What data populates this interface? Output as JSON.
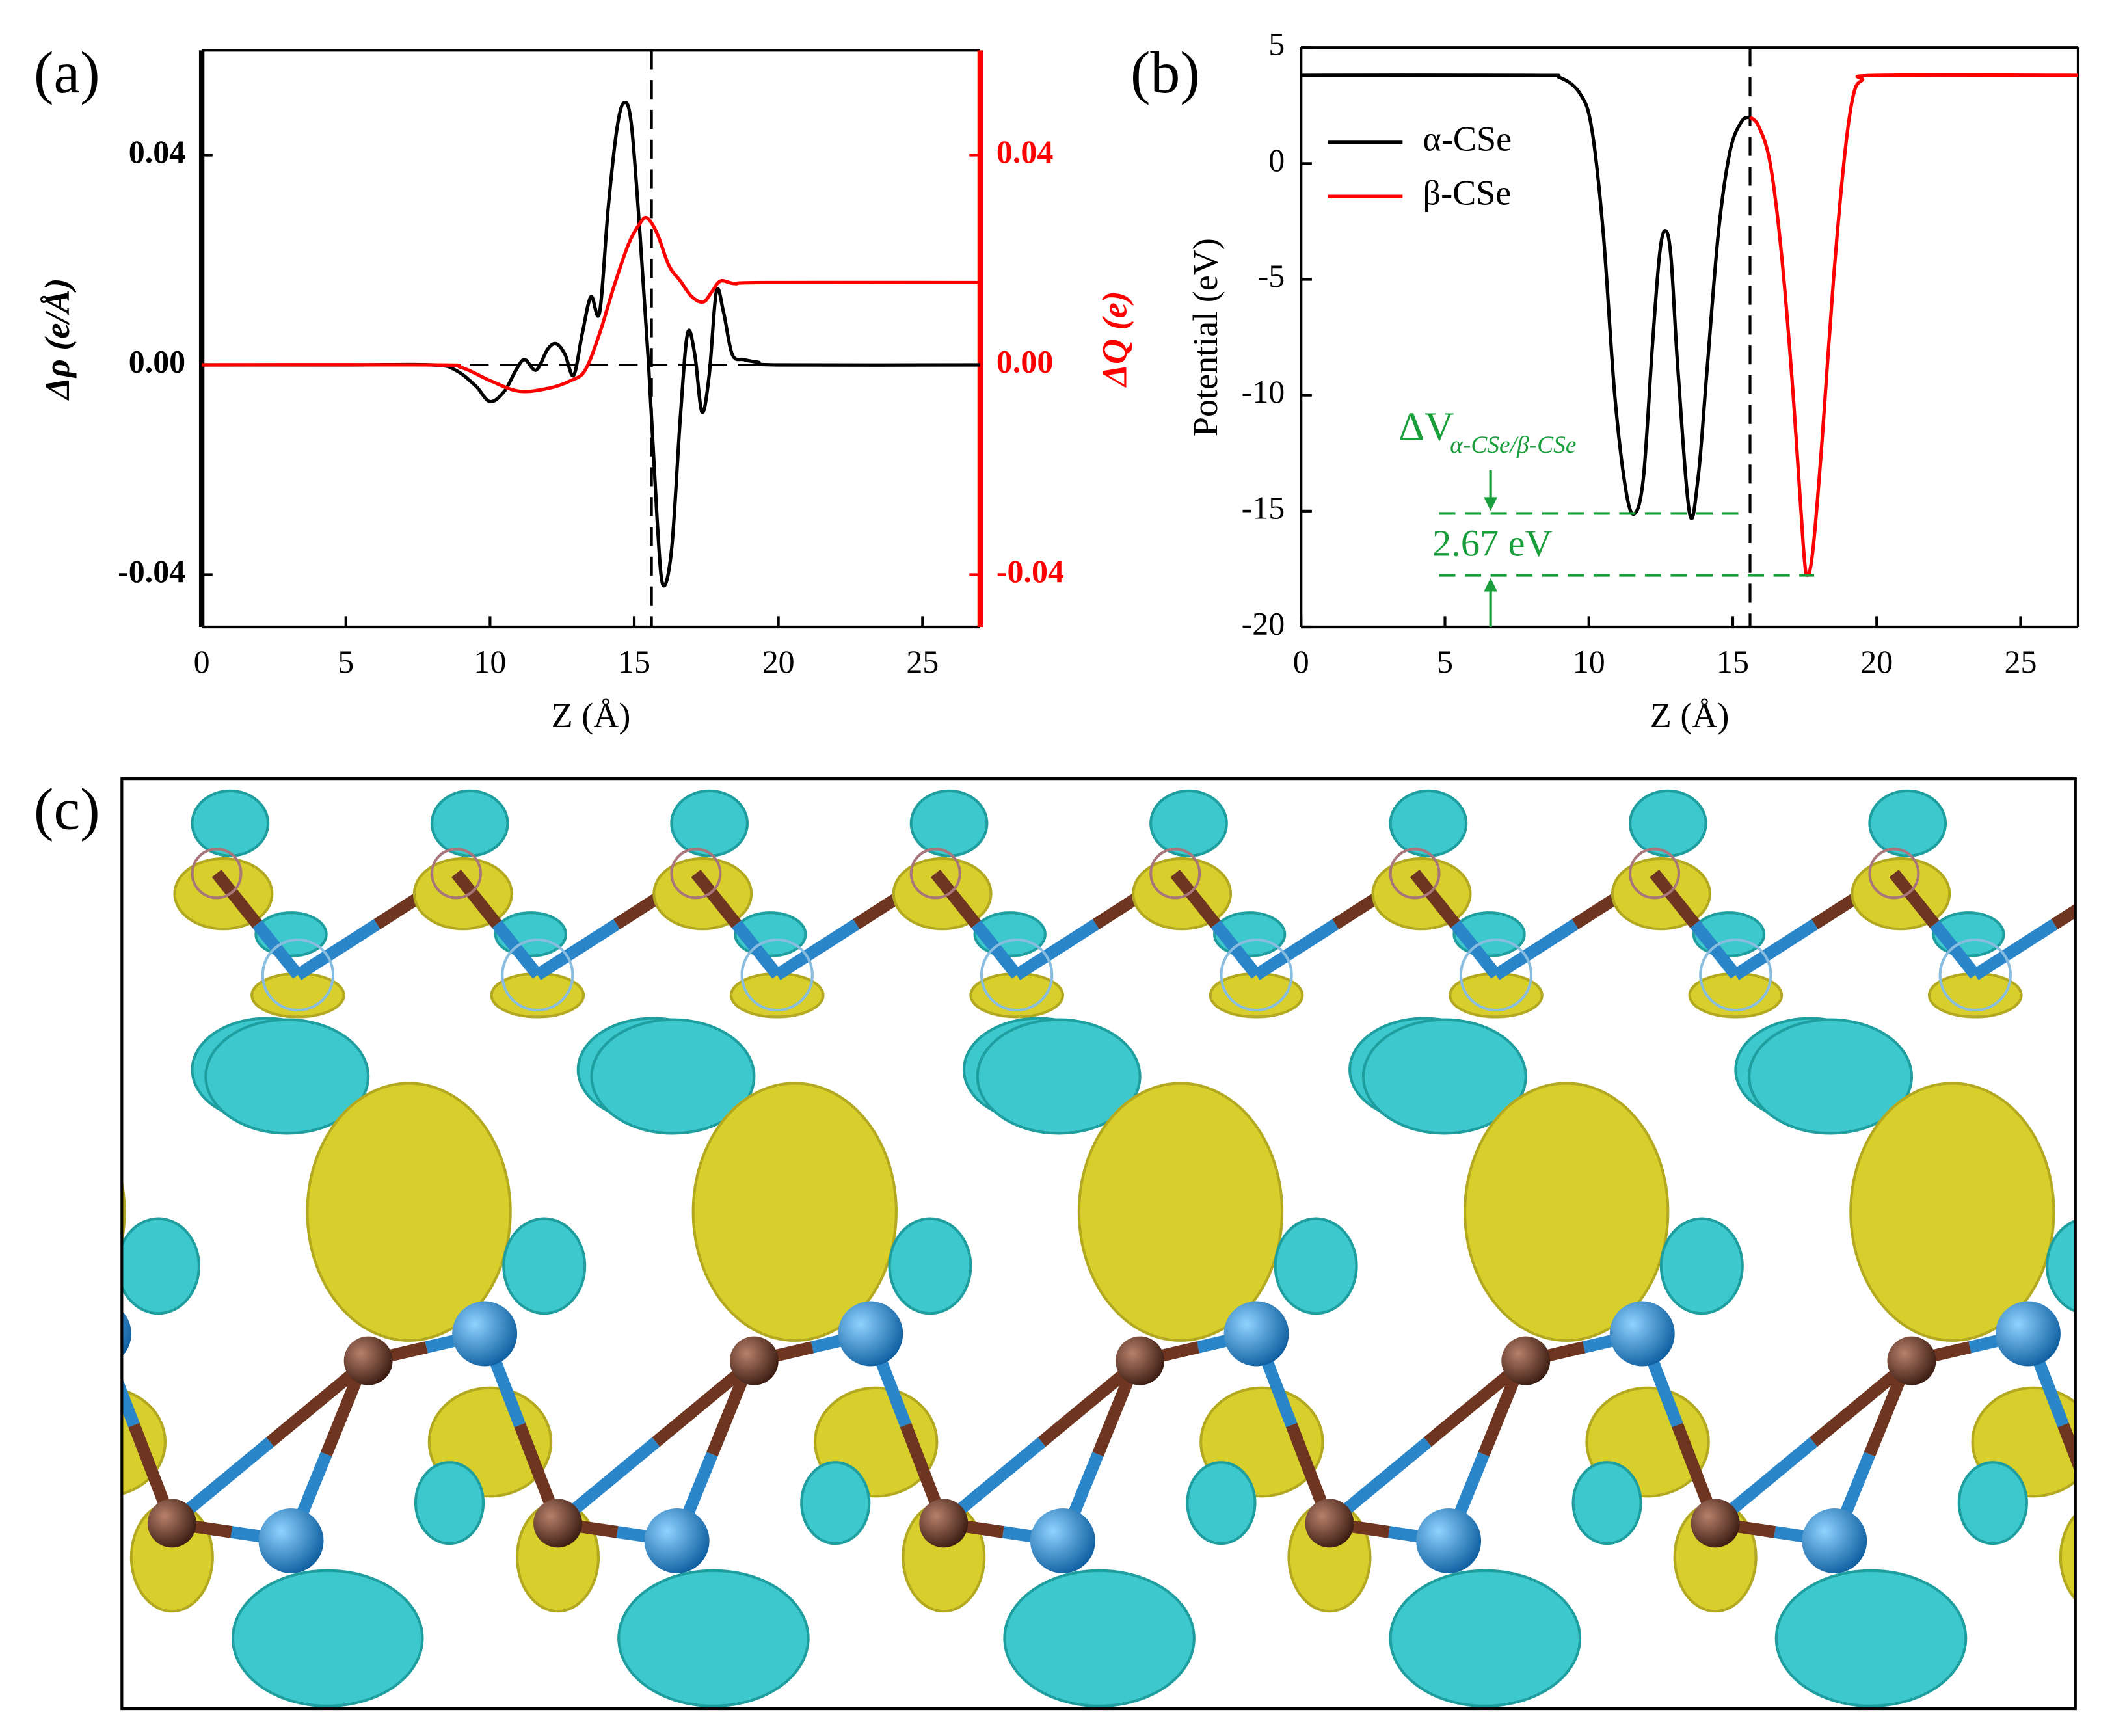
{
  "chart_data": [
    {
      "type": "line",
      "panel_label": "(a)",
      "xlabel": "Z (Å)",
      "ylabel": "Δρ (e/Å)",
      "y2label": "ΔQ (e)",
      "xlim": [
        0,
        27
      ],
      "xticks": [
        0,
        5,
        10,
        15,
        20,
        25
      ],
      "ylim": [
        -0.05,
        0.06
      ],
      "yticks": [
        -0.04,
        {
          "value": 0,
          "label": "0.00"
        },
        0.04
      ],
      "y2lim": [
        -0.05,
        0.06
      ],
      "y2ticks": [
        -0.04,
        {
          "value": 0,
          "label": "0.00"
        },
        0.04
      ],
      "vline": 15.6,
      "hline": 0,
      "series": [
        {
          "color": "#000000",
          "axis": "y",
          "x": [
            0,
            5,
            8,
            8.8,
            9.5,
            10,
            10.5,
            10.9,
            11.2,
            11.6,
            12,
            12.3,
            12.6,
            12.9,
            13.2,
            13.5,
            13.8,
            14.1,
            14.4,
            14.65,
            14.9,
            15.2,
            15.5,
            15.8,
            16.0,
            16.3,
            16.6,
            16.85,
            17.1,
            17.35,
            17.6,
            17.85,
            18.1,
            18.4,
            18.8,
            19.3,
            20,
            27
          ],
          "values": [
            0,
            0,
            0,
            -0.001,
            -0.004,
            -0.007,
            -0.005,
            -0.001,
            0.001,
            -0.001,
            0.003,
            0.004,
            0.002,
            -0.002,
            0.006,
            0.013,
            0.01,
            0.03,
            0.045,
            0.05,
            0.046,
            0.025,
            0.0,
            -0.03,
            -0.042,
            -0.035,
            -0.01,
            0.006,
            0.002,
            -0.009,
            -0.002,
            0.014,
            0.01,
            0.002,
            0.001,
            0.0005,
            0,
            0
          ]
        },
        {
          "color": "#ff0000",
          "axis": "y2",
          "x": [
            0,
            8,
            9,
            10,
            11,
            12,
            12.8,
            13.3,
            13.8,
            14.3,
            14.8,
            15.2,
            15.45,
            15.8,
            16.2,
            16.6,
            17.0,
            17.4,
            17.7,
            18.0,
            18.5,
            19.5,
            27
          ],
          "values": [
            0,
            0,
            -0.0005,
            -0.003,
            -0.005,
            -0.0045,
            -0.003,
            -0.001,
            0.006,
            0.015,
            0.023,
            0.027,
            0.028,
            0.025,
            0.019,
            0.016,
            0.013,
            0.012,
            0.014,
            0.016,
            0.0155,
            0.0157,
            0.0157
          ]
        }
      ]
    },
    {
      "type": "line",
      "panel_label": "(b)",
      "xlabel": "Z (Å)",
      "ylabel": "Potential (eV)",
      "xlim": [
        0,
        27
      ],
      "xticks": [
        0,
        5,
        10,
        15,
        20,
        25
      ],
      "ylim": [
        -20,
        5
      ],
      "yticks": [
        -20,
        -15,
        -10,
        -5,
        0,
        5
      ],
      "vline": 15.6,
      "legend": "upper left",
      "annotation_symbol": "ΔV",
      "annotation_subscript": "α-CSe/β-CSe",
      "annotation_value": "2.67 eV",
      "annotation_color": "#1a9e3c",
      "level_lines": [
        -15.1,
        -17.77
      ],
      "series": [
        {
          "name": "α-CSe",
          "color": "#000000",
          "x": [
            0,
            8,
            9,
            9.7,
            10.1,
            10.5,
            10.9,
            11.3,
            11.6,
            11.9,
            12.2,
            12.45,
            12.65,
            12.85,
            13.1,
            13.5,
            13.8,
            14.1,
            14.5,
            14.9,
            15.3,
            15.6
          ],
          "values": [
            3.8,
            3.8,
            3.7,
            3.0,
            1.5,
            -3,
            -10,
            -14.2,
            -15.1,
            -13.5,
            -8,
            -4,
            -2.9,
            -4,
            -9,
            -15.1,
            -13.5,
            -9,
            -3,
            0.5,
            1.8,
            2.0
          ]
        },
        {
          "name": "β-CSe",
          "color": "#ff0000",
          "x": [
            15.6,
            15.9,
            16.3,
            16.7,
            17.1,
            17.45,
            17.6,
            17.8,
            18.1,
            18.5,
            18.9,
            19.2,
            19.5,
            20,
            27
          ],
          "values": [
            2.0,
            1.6,
            0,
            -4,
            -10,
            -16.5,
            -17.77,
            -16.5,
            -12,
            -5,
            0.5,
            3,
            3.6,
            3.8,
            3.8
          ]
        }
      ]
    }
  ],
  "panel_c": {
    "label": "(c)"
  }
}
